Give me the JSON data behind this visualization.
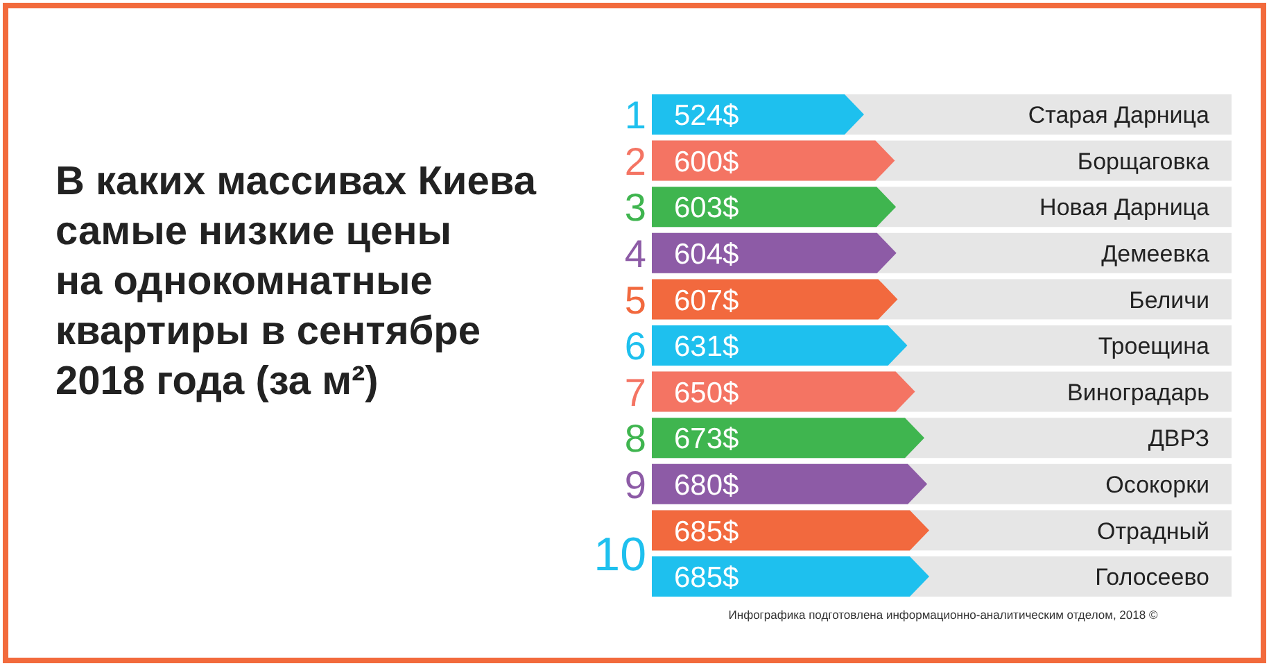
{
  "chart_data": {
    "type": "bar",
    "orientation": "horizontal",
    "title": "В каких массивах Киева\nсамые низкие цены\nна однокомнатные\nквартиры в сентябре\n2018 года (за м²)",
    "categories": [
      "Старая Дарница",
      "Борщаговка",
      "Новая Дарница",
      "Демеевка",
      "Беличи",
      "Троещина",
      "Виноградарь",
      "ДВРЗ",
      "Осокорки",
      "Отрадный",
      "Голосеево"
    ],
    "values": [
      524,
      600,
      603,
      604,
      607,
      631,
      650,
      673,
      680,
      685,
      685
    ],
    "value_labels": [
      "524$",
      "600$",
      "603$",
      "604$",
      "607$",
      "631$",
      "650$",
      "673$",
      "680$",
      "685$",
      "685$"
    ],
    "colors": [
      "#1ec0ee",
      "#f47463",
      "#3fb54f",
      "#8d5ba6",
      "#f2693e",
      "#1ec0ee",
      "#f47463",
      "#3fb54f",
      "#8d5ba6",
      "#f2693e",
      "#1ec0ee"
    ],
    "annotations": [
      "1",
      "2",
      "3",
      "4",
      "5",
      "6",
      "7",
      "8",
      "9",
      "10",
      "Инфографика подготовлена информационно-аналитическим отделом, 2018 ©"
    ]
  }
}
